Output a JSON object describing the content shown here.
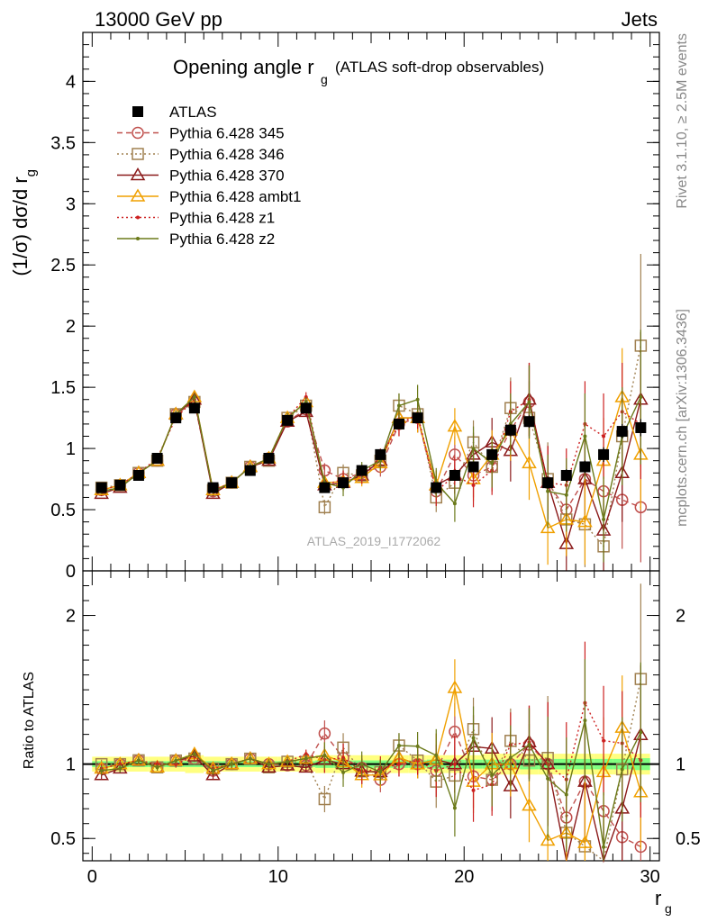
{
  "header": {
    "left": "13000 GeV pp",
    "right": "Jets"
  },
  "side_labels": {
    "rivet": "Rivet 3.1.10, ≥ 2.5M events",
    "mcplots": "mcplots.cern.ch [arXiv:1306.3436]"
  },
  "watermark": "ATLAS_2019_I1772062",
  "colors": {
    "ATLAS": "#000000",
    "p345": "#c0504d",
    "p346": "#a08050",
    "p370": "#8b1a1a",
    "ambt1": "#f0a000",
    "z1": "#cc2020",
    "z2": "#6b7a1a",
    "band_inner": "#80ff80",
    "band_outer": "#ffff80"
  },
  "chart_data": [
    {
      "type": "scatter",
      "panel": "main",
      "title_main": "Opening angle r",
      "title_sub": "g",
      "title_rest": "(ATLAS soft-drop observables)",
      "ylabel_main": "(1/σ) dσ/d r",
      "ylabel_sub": "g",
      "ylim": [
        0,
        4.4
      ],
      "xlim": [
        -0.5,
        30.5
      ],
      "yticks": [
        0,
        0.5,
        1,
        1.5,
        2,
        2.5,
        3,
        3.5,
        4
      ],
      "ytick_labels": [
        "0",
        "0.5",
        "1",
        "1.5",
        "2",
        "2.5",
        "3",
        "3.5",
        "4"
      ],
      "x": [
        0.5,
        1.5,
        2.5,
        3.5,
        4.5,
        5.5,
        6.5,
        7.5,
        8.5,
        9.5,
        10.5,
        11.5,
        12.5,
        13.5,
        14.5,
        15.5,
        16.5,
        17.5,
        18.5,
        19.5,
        20.5,
        21.5,
        22.5,
        23.5,
        24.5,
        25.5,
        26.5,
        27.5,
        28.5,
        29.5
      ],
      "legend": {
        "placement": "top-left",
        "entries": [
          "ATLAS",
          "Pythia 6.428 345",
          "Pythia 6.428 346",
          "Pythia 6.428 370",
          "Pythia 6.428 ambt1",
          "Pythia 6.428 z1",
          "Pythia 6.428 z2"
        ]
      },
      "series": [
        {
          "name": "ATLAS",
          "color_key": "ATLAS",
          "marker": "square-filled",
          "line": "none",
          "values": [
            0.68,
            0.7,
            0.78,
            0.92,
            1.25,
            1.33,
            0.68,
            0.72,
            0.82,
            0.92,
            1.23,
            1.33,
            0.68,
            0.72,
            0.82,
            0.95,
            1.2,
            1.25,
            0.68,
            0.78,
            0.85,
            0.95,
            1.15,
            1.22,
            0.72,
            0.78,
            0.85,
            0.95,
            1.14,
            1.17
          ],
          "errors": [
            0.02,
            0.02,
            0.02,
            0.02,
            0.02,
            0.02,
            0.02,
            0.02,
            0.02,
            0.02,
            0.02,
            0.02,
            0.03,
            0.03,
            0.03,
            0.03,
            0.03,
            0.03,
            0.03,
            0.04,
            0.04,
            0.04,
            0.05,
            0.05,
            0.05,
            0.05,
            0.05,
            0.06,
            0.06,
            0.07
          ]
        },
        {
          "name": "Pythia 6.428 345",
          "color_key": "p345",
          "marker": "circle-open",
          "line": "dashed",
          "values": [
            0.66,
            0.7,
            0.8,
            0.9,
            1.28,
            1.38,
            0.65,
            0.72,
            0.85,
            0.92,
            1.22,
            1.32,
            0.82,
            0.75,
            0.8,
            0.85,
            1.2,
            1.25,
            0.65,
            0.95,
            0.78,
            0.85,
            1.15,
            1.38,
            0.72,
            0.5,
            0.75,
            0.65,
            0.58,
            0.52
          ],
          "errors": [
            0.02,
            0.02,
            0.02,
            0.02,
            0.03,
            0.03,
            0.02,
            0.02,
            0.03,
            0.03,
            0.04,
            0.04,
            0.06,
            0.07,
            0.07,
            0.08,
            0.1,
            0.12,
            0.12,
            0.15,
            0.18,
            0.2,
            0.25,
            0.3,
            0.3,
            0.3,
            0.35,
            0.35,
            0.4,
            0.45
          ]
        },
        {
          "name": "Pythia 6.428 346",
          "color_key": "p346",
          "marker": "square-open",
          "line": "dotted",
          "values": [
            0.68,
            0.7,
            0.8,
            0.9,
            1.28,
            1.38,
            0.66,
            0.72,
            0.85,
            0.9,
            1.25,
            1.35,
            0.52,
            0.8,
            0.78,
            0.9,
            1.35,
            1.28,
            0.6,
            0.72,
            1.05,
            0.85,
            1.33,
            1.25,
            0.75,
            0.42,
            0.38,
            0.2,
            1.1,
            1.84
          ],
          "errors": [
            0.02,
            0.02,
            0.02,
            0.02,
            0.03,
            0.03,
            0.02,
            0.02,
            0.03,
            0.03,
            0.04,
            0.04,
            0.06,
            0.07,
            0.07,
            0.08,
            0.1,
            0.12,
            0.12,
            0.15,
            0.18,
            0.2,
            0.25,
            0.3,
            0.3,
            0.3,
            0.35,
            0.35,
            0.4,
            0.75
          ]
        },
        {
          "name": "Pythia 6.428 370",
          "color_key": "p370",
          "marker": "triangle-open",
          "line": "solid",
          "values": [
            0.63,
            0.68,
            0.8,
            0.9,
            1.28,
            1.4,
            0.63,
            0.72,
            0.85,
            0.9,
            1.22,
            1.3,
            0.7,
            0.72,
            0.78,
            0.9,
            1.25,
            1.25,
            0.7,
            0.78,
            0.95,
            1.05,
            0.98,
            1.4,
            0.72,
            0.22,
            0.75,
            0.33,
            0.8,
            1.4
          ],
          "errors": [
            0.02,
            0.02,
            0.02,
            0.02,
            0.03,
            0.03,
            0.02,
            0.02,
            0.03,
            0.03,
            0.04,
            0.04,
            0.06,
            0.07,
            0.07,
            0.08,
            0.1,
            0.12,
            0.12,
            0.15,
            0.18,
            0.2,
            0.25,
            0.3,
            0.3,
            0.3,
            0.35,
            0.35,
            0.4,
            0.55
          ]
        },
        {
          "name": "Pythia 6.428 ambt1",
          "color_key": "ambt1",
          "marker": "triangle-open",
          "line": "solid",
          "values": [
            0.66,
            0.7,
            0.8,
            0.9,
            1.28,
            1.42,
            0.66,
            0.72,
            0.85,
            0.92,
            1.25,
            1.38,
            0.72,
            0.73,
            0.76,
            0.88,
            1.25,
            1.25,
            0.7,
            1.18,
            0.75,
            0.95,
            1.15,
            0.88,
            0.35,
            0.42,
            0.4,
            0.9,
            1.42,
            0.95
          ],
          "errors": [
            0.02,
            0.02,
            0.02,
            0.02,
            0.03,
            0.03,
            0.02,
            0.02,
            0.03,
            0.03,
            0.04,
            0.04,
            0.06,
            0.07,
            0.07,
            0.08,
            0.1,
            0.12,
            0.12,
            0.15,
            0.18,
            0.2,
            0.25,
            0.3,
            0.3,
            0.3,
            0.35,
            0.35,
            0.4,
            0.45
          ]
        },
        {
          "name": "Pythia 6.428 z1",
          "color_key": "z1",
          "marker": "dot",
          "line": "dotted",
          "values": [
            0.66,
            0.7,
            0.8,
            0.92,
            1.25,
            1.4,
            0.66,
            0.72,
            0.85,
            0.92,
            1.25,
            1.42,
            0.7,
            0.75,
            0.78,
            0.92,
            1.2,
            1.28,
            0.65,
            0.78,
            0.7,
            0.82,
            1.3,
            1.4,
            0.72,
            0.7,
            1.2,
            1.1,
            1.3,
            1.2
          ],
          "errors": [
            0.02,
            0.02,
            0.02,
            0.02,
            0.03,
            0.03,
            0.02,
            0.02,
            0.03,
            0.03,
            0.04,
            0.04,
            0.06,
            0.07,
            0.07,
            0.08,
            0.1,
            0.12,
            0.12,
            0.15,
            0.18,
            0.2,
            0.25,
            0.3,
            0.3,
            0.3,
            0.35,
            0.35,
            0.4,
            0.45
          ]
        },
        {
          "name": "Pythia 6.428 z2",
          "color_key": "z2",
          "marker": "dot",
          "line": "solid",
          "values": [
            0.65,
            0.68,
            0.8,
            0.9,
            1.28,
            1.42,
            0.65,
            0.72,
            0.85,
            0.92,
            1.25,
            1.38,
            0.72,
            0.68,
            0.82,
            0.9,
            1.35,
            1.4,
            0.72,
            0.55,
            1.0,
            0.88,
            1.2,
            1.38,
            0.65,
            0.62,
            1.1,
            0.42,
            1.1,
            1.42
          ],
          "errors": [
            0.02,
            0.02,
            0.02,
            0.02,
            0.03,
            0.03,
            0.02,
            0.02,
            0.03,
            0.03,
            0.04,
            0.04,
            0.06,
            0.07,
            0.07,
            0.08,
            0.1,
            0.12,
            0.12,
            0.15,
            0.18,
            0.2,
            0.25,
            0.3,
            0.3,
            0.3,
            0.35,
            0.35,
            0.4,
            0.55
          ]
        }
      ]
    },
    {
      "type": "line",
      "panel": "ratio",
      "ylabel": "Ratio to ATLAS",
      "xlabel_main": "r",
      "xlabel_sub": "g",
      "ylim": [
        0.35,
        2.3
      ],
      "xlim": [
        -0.5,
        30.5
      ],
      "yticks": [
        0.5,
        1,
        2
      ],
      "ytick_labels": [
        "0.5",
        "1",
        "2"
      ],
      "xticks": [
        0,
        10,
        20,
        30
      ],
      "xtick_labels": [
        "0",
        "10",
        "20",
        "30"
      ],
      "reference_line": 1,
      "band_inner_halfwidth": [
        0.02,
        0.02,
        0.02,
        0.02,
        0.02,
        0.02,
        0.02,
        0.02,
        0.02,
        0.02,
        0.02,
        0.02,
        0.025,
        0.025,
        0.025,
        0.025,
        0.025,
        0.025,
        0.03,
        0.03,
        0.03,
        0.03,
        0.03,
        0.035,
        0.035,
        0.035,
        0.035,
        0.035,
        0.035,
        0.04
      ],
      "band_outer_halfwidth": [
        0.05,
        0.05,
        0.05,
        0.05,
        0.05,
        0.06,
        0.05,
        0.05,
        0.05,
        0.05,
        0.05,
        0.05,
        0.06,
        0.06,
        0.06,
        0.06,
        0.06,
        0.06,
        0.06,
        0.06,
        0.06,
        0.07,
        0.07,
        0.07,
        0.07,
        0.07,
        0.07,
        0.07,
        0.07,
        0.07
      ]
    }
  ]
}
